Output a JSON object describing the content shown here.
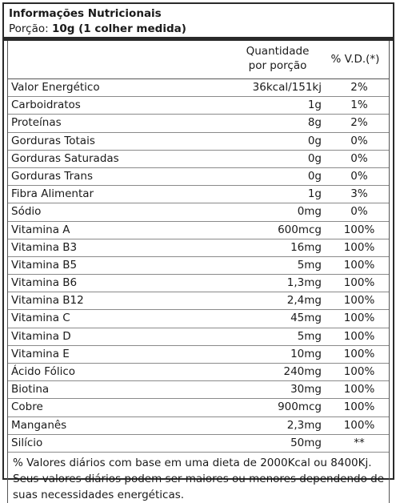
{
  "title": "Informações Nutricionais",
  "portion_label": "Porção:",
  "portion_value": "10g (1 colher medida)",
  "headers": {
    "quantity_line1": "Quantidade",
    "quantity_line2": "por porção",
    "vd": "% V.D.(*)"
  },
  "rows": [
    {
      "name": "Valor Energético",
      "qty": "36kcal/151kj",
      "vd": "2%"
    },
    {
      "name": "Carboidratos",
      "qty": "1g",
      "vd": "1%"
    },
    {
      "name": "Proteínas",
      "qty": "8g",
      "vd": "2%"
    },
    {
      "name": "Gorduras Totais",
      "qty": "0g",
      "vd": "0%"
    },
    {
      "name": "Gorduras Saturadas",
      "qty": "0g",
      "vd": "0%"
    },
    {
      "name": "Gorduras Trans",
      "qty": "0g",
      "vd": "0%"
    },
    {
      "name": "Fibra Alimentar",
      "qty": "1g",
      "vd": "3%"
    },
    {
      "name": "Sódio",
      "qty": "0mg",
      "vd": "0%"
    },
    {
      "name": "Vitamina A",
      "qty": "600mcg",
      "vd": "100%"
    },
    {
      "name": "Vitamina B3",
      "qty": "16mg",
      "vd": "100%"
    },
    {
      "name": "Vitamina B5",
      "qty": "5mg",
      "vd": "100%"
    },
    {
      "name": "Vitamina B6",
      "qty": "1,3mg",
      "vd": "100%"
    },
    {
      "name": "Vitamina B12",
      "qty": "2,4mg",
      "vd": "100%"
    },
    {
      "name": "Vitamina C",
      "qty": "45mg",
      "vd": "100%"
    },
    {
      "name": "Vitamina D",
      "qty": "5mg",
      "vd": "100%"
    },
    {
      "name": "Vitamina E",
      "qty": "10mg",
      "vd": "100%"
    },
    {
      "name": "Ácido Fólico",
      "qty": "240mg",
      "vd": "100%"
    },
    {
      "name": "Biotina",
      "qty": "30mg",
      "vd": "100%"
    },
    {
      "name": "Cobre",
      "qty": "900mcg",
      "vd": "100%"
    },
    {
      "name": "Manganês",
      "qty": "2,3mg",
      "vd": "100%"
    },
    {
      "name": "Silício",
      "qty": "50mg",
      "vd": "**"
    }
  ],
  "footnote": "% Valores diários com base em uma dieta de 2000Kcal ou 8400Kj. Seus valores diários podem ser maiores ou menores dependendo de suas necessidades energéticas."
}
